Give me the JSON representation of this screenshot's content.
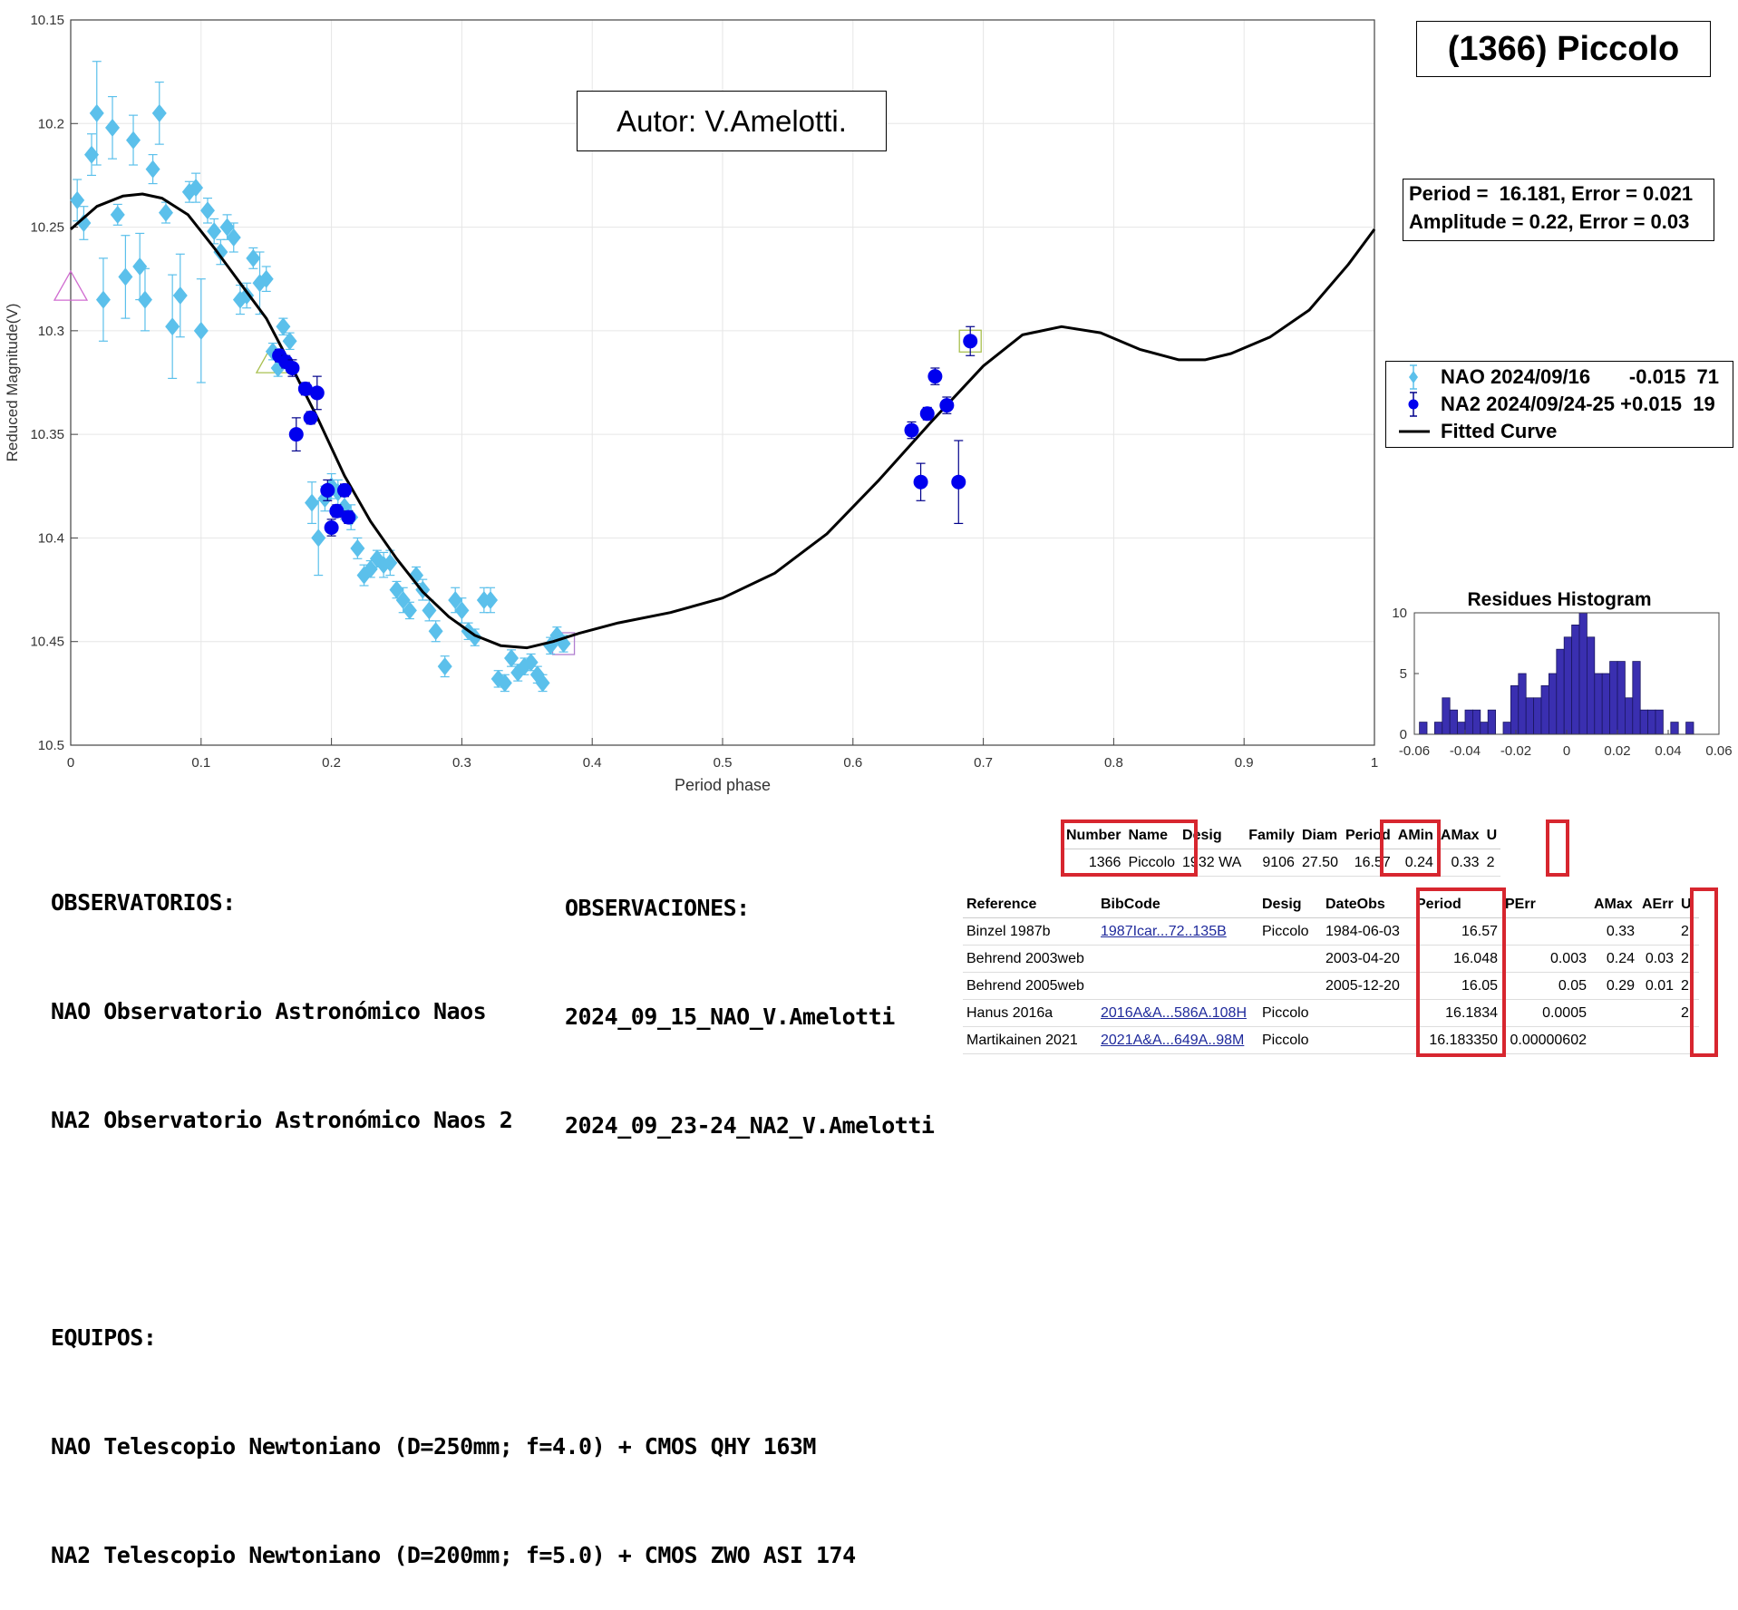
{
  "title": "(1366) Piccolo",
  "author": "Autor: V.Amelotti.",
  "fit_results": {
    "period_line": "Period =  16.181, Error = 0.021",
    "amplitude_line": "Amplitude = 0.22, Error = 0.03"
  },
  "legend": {
    "items": [
      {
        "label": "NAO 2024/09/16       -0.015  71",
        "color": "#5bc0eb",
        "marker": "diamond"
      },
      {
        "label": "NA2 2024/09/24-25 +0.015  19",
        "color": "#0000ee",
        "marker": "circle"
      },
      {
        "label": "Fitted Curve",
        "color": "#000000",
        "marker": "line"
      }
    ]
  },
  "chart_data": [
    {
      "type": "scatter",
      "xlabel": "Period phase",
      "ylabel": "Reduced Magnitude(V)",
      "xlim": [
        0,
        1
      ],
      "ylim": [
        10.15,
        10.5
      ],
      "y_inverted": true,
      "grid": true,
      "x_ticks": [
        "0",
        "0.1",
        "0.2",
        "0.3",
        "0.4",
        "0.5",
        "0.6",
        "0.7",
        "0.8",
        "0.9",
        "1"
      ],
      "y_ticks": [
        "10.15",
        "10.2",
        "10.25",
        "10.3",
        "10.35",
        "10.4",
        "10.45",
        "10.5"
      ],
      "series": [
        {
          "name": "NAO 2024/09/16",
          "color": "#5bc0eb",
          "marker": "diamond",
          "points": [
            [
              0.005,
              10.237,
              0.01
            ],
            [
              0.01,
              10.248,
              0.008
            ],
            [
              0.016,
              10.215,
              0.01
            ],
            [
              0.02,
              10.195,
              0.025
            ],
            [
              0.025,
              10.285,
              0.02
            ],
            [
              0.032,
              10.202,
              0.015
            ],
            [
              0.036,
              10.244,
              0.005
            ],
            [
              0.042,
              10.274,
              0.02
            ],
            [
              0.048,
              10.208,
              0.012
            ],
            [
              0.053,
              10.269,
              0.016
            ],
            [
              0.057,
              10.285,
              0.015
            ],
            [
              0.063,
              10.222,
              0.007
            ],
            [
              0.068,
              10.195,
              0.015
            ],
            [
              0.073,
              10.243,
              0.005
            ],
            [
              0.078,
              10.298,
              0.025
            ],
            [
              0.084,
              10.283,
              0.02
            ],
            [
              0.091,
              10.233,
              0.005
            ],
            [
              0.096,
              10.231,
              0.007
            ],
            [
              0.1,
              10.3,
              0.025
            ],
            [
              0.105,
              10.242,
              0.006
            ],
            [
              0.11,
              10.252,
              0.006
            ],
            [
              0.115,
              10.262,
              0.006
            ],
            [
              0.12,
              10.25,
              0.006
            ],
            [
              0.125,
              10.255,
              0.007
            ],
            [
              0.13,
              10.285,
              0.007
            ],
            [
              0.135,
              10.283,
              0.006
            ],
            [
              0.14,
              10.265,
              0.005
            ],
            [
              0.145,
              10.277,
              0.015
            ],
            [
              0.15,
              10.275,
              0.006
            ],
            [
              0.155,
              10.31,
              0.004
            ],
            [
              0.159,
              10.318,
              0.004
            ],
            [
              0.163,
              10.298,
              0.004
            ],
            [
              0.168,
              10.305,
              0.004
            ],
            [
              0.185,
              10.383,
              0.01
            ],
            [
              0.19,
              10.4,
              0.018
            ],
            [
              0.195,
              10.381,
              0.006
            ],
            [
              0.2,
              10.375,
              0.006
            ],
            [
              0.205,
              10.378,
              0.006
            ],
            [
              0.21,
              10.385,
              0.006
            ],
            [
              0.215,
              10.39,
              0.006
            ],
            [
              0.22,
              10.405,
              0.005
            ],
            [
              0.225,
              10.418,
              0.005
            ],
            [
              0.23,
              10.415,
              0.004
            ],
            [
              0.235,
              10.41,
              0.004
            ],
            [
              0.24,
              10.413,
              0.006
            ],
            [
              0.245,
              10.412,
              0.006
            ],
            [
              0.25,
              10.425,
              0.004
            ],
            [
              0.255,
              10.43,
              0.006
            ],
            [
              0.26,
              10.435,
              0.004
            ],
            [
              0.265,
              10.418,
              0.004
            ],
            [
              0.27,
              10.425,
              0.005
            ],
            [
              0.275,
              10.435,
              0.005
            ],
            [
              0.28,
              10.445,
              0.005
            ],
            [
              0.287,
              10.462,
              0.005
            ],
            [
              0.295,
              10.43,
              0.006
            ],
            [
              0.3,
              10.435,
              0.006
            ],
            [
              0.305,
              10.445,
              0.004
            ],
            [
              0.31,
              10.448,
              0.004
            ],
            [
              0.317,
              10.43,
              0.006
            ],
            [
              0.322,
              10.43,
              0.006
            ],
            [
              0.328,
              10.468,
              0.004
            ],
            [
              0.333,
              10.47,
              0.004
            ],
            [
              0.338,
              10.458,
              0.004
            ],
            [
              0.343,
              10.465,
              0.004
            ],
            [
              0.348,
              10.462,
              0.004
            ],
            [
              0.353,
              10.46,
              0.004
            ],
            [
              0.358,
              10.466,
              0.004
            ],
            [
              0.362,
              10.47,
              0.004
            ],
            [
              0.368,
              10.452,
              0.004
            ],
            [
              0.373,
              10.447,
              0.004
            ],
            [
              0.378,
              10.451,
              0.004
            ]
          ]
        },
        {
          "name": "NA2 2024/09/24-25",
          "color": "#0000ee",
          "marker": "circle",
          "points": [
            [
              0.16,
              10.312,
              0.003
            ],
            [
              0.165,
              10.315,
              0.003
            ],
            [
              0.17,
              10.318,
              0.004
            ],
            [
              0.173,
              10.35,
              0.008
            ],
            [
              0.18,
              10.328,
              0.003
            ],
            [
              0.184,
              10.342,
              0.003
            ],
            [
              0.189,
              10.33,
              0.008
            ],
            [
              0.197,
              10.377,
              0.005
            ],
            [
              0.2,
              10.395,
              0.004
            ],
            [
              0.204,
              10.387,
              0.003
            ],
            [
              0.21,
              10.377,
              0.003
            ],
            [
              0.213,
              10.39,
              0.003
            ],
            [
              0.645,
              10.348,
              0.004
            ],
            [
              0.652,
              10.373,
              0.009
            ],
            [
              0.657,
              10.34,
              0.003
            ],
            [
              0.663,
              10.322,
              0.004
            ],
            [
              0.672,
              10.336,
              0.004
            ],
            [
              0.681,
              10.373,
              0.02
            ],
            [
              0.69,
              10.305,
              0.007
            ]
          ]
        },
        {
          "name": "Fitted Curve",
          "type": "line",
          "color": "#000000",
          "points": [
            [
              0,
              10.251
            ],
            [
              0.02,
              10.24
            ],
            [
              0.04,
              10.235
            ],
            [
              0.055,
              10.234
            ],
            [
              0.07,
              10.236
            ],
            [
              0.09,
              10.244
            ],
            [
              0.11,
              10.26
            ],
            [
              0.13,
              10.277
            ],
            [
              0.15,
              10.294
            ],
            [
              0.17,
              10.318
            ],
            [
              0.19,
              10.343
            ],
            [
              0.21,
              10.37
            ],
            [
              0.23,
              10.392
            ],
            [
              0.25,
              10.41
            ],
            [
              0.27,
              10.426
            ],
            [
              0.29,
              10.438
            ],
            [
              0.31,
              10.447
            ],
            [
              0.33,
              10.452
            ],
            [
              0.35,
              10.453
            ],
            [
              0.37,
              10.45
            ],
            [
              0.39,
              10.446
            ],
            [
              0.42,
              10.441
            ],
            [
              0.46,
              10.436
            ],
            [
              0.5,
              10.429
            ],
            [
              0.54,
              10.417
            ],
            [
              0.58,
              10.398
            ],
            [
              0.62,
              10.372
            ],
            [
              0.66,
              10.344
            ],
            [
              0.7,
              10.317
            ],
            [
              0.73,
              10.302
            ],
            [
              0.76,
              10.298
            ],
            [
              0.79,
              10.301
            ],
            [
              0.82,
              10.309
            ],
            [
              0.85,
              10.314
            ],
            [
              0.87,
              10.314
            ],
            [
              0.89,
              10.311
            ],
            [
              0.92,
              10.303
            ],
            [
              0.95,
              10.29
            ],
            [
              0.98,
              10.268
            ],
            [
              1,
              10.251
            ]
          ]
        }
      ],
      "markers": [
        {
          "x": 0.0,
          "y": 10.28,
          "shape": "triangle",
          "color": "#d06cd0"
        },
        {
          "x": 0.155,
          "y": 10.315,
          "shape": "triangle",
          "color": "#a9c050"
        },
        {
          "x": 0.378,
          "y": 10.451,
          "shape": "square",
          "color": "#b07ed0"
        },
        {
          "x": 0.69,
          "y": 10.305,
          "shape": "square",
          "color": "#a9c050"
        }
      ]
    },
    {
      "type": "bar",
      "title": "Residues Histogram",
      "xlim": [
        -0.06,
        0.06
      ],
      "ylim": [
        0,
        10
      ],
      "x_ticks": [
        "-0.06",
        "-0.04",
        "-0.02",
        "0",
        "0.02",
        "0.04",
        "0.06"
      ],
      "y_ticks": [
        "0",
        "5",
        "10"
      ],
      "color": "#3a2fb0",
      "bin_width": 0.003,
      "bin_starts": [
        -0.058,
        -0.055,
        -0.052,
        -0.049,
        -0.046,
        -0.043,
        -0.04,
        -0.037,
        -0.034,
        -0.031,
        -0.028,
        -0.025,
        -0.022,
        -0.019,
        -0.016,
        -0.013,
        -0.01,
        -0.007,
        -0.004,
        -0.001,
        0.002,
        0.005,
        0.008,
        0.011,
        0.014,
        0.017,
        0.02,
        0.023,
        0.026,
        0.029,
        0.032,
        0.035,
        0.038,
        0.041,
        0.044,
        0.047
      ],
      "values": [
        1,
        0,
        1,
        3,
        2,
        1,
        2,
        2,
        1,
        2,
        0,
        1,
        4,
        5,
        3,
        3,
        4,
        5,
        7,
        8,
        9,
        10,
        8,
        5,
        5,
        6,
        6,
        3,
        6,
        2,
        2,
        2,
        0,
        1,
        0,
        1
      ]
    }
  ],
  "notes_left": {
    "lines": [
      "OBSERVATORIOS:",
      "NAO Observatorio Astronómico Naos",
      "NA2 Observatorio Astronómico Naos 2",
      "",
      "EQUIPOS:",
      "NAO Telescopio Newtoniano (D=250mm; f=4.0) + CMOS QHY 163M",
      "NA2 Telescopio Newtoniano (D=200mm; f=5.0) + CMOS ZWO ASI 174"
    ]
  },
  "notes_middle": {
    "lines": [
      "OBSERVACIONES:",
      "2024_09_15_NAO_V.Amelotti",
      "2024_09_23-24_NA2_V.Amelotti"
    ]
  },
  "summary_table": {
    "headers": [
      "Number",
      "Name",
      "Desig",
      "Family",
      "Diam",
      "Period",
      "AMin",
      "AMax",
      "U"
    ],
    "row": [
      "1366",
      "Piccolo",
      "1932 WA",
      "9106",
      "27.50",
      "16.57",
      "0.24",
      "0.33",
      "2"
    ]
  },
  "reference_table": {
    "headers": [
      "Reference",
      "BibCode",
      "Desig",
      "DateObs",
      "Period",
      "PErr",
      "AMax",
      "AErr",
      "U"
    ],
    "rows": [
      [
        "Binzel 1987b",
        "1987Icar...72..135B",
        "Piccolo",
        "1984-06-03",
        "16.57",
        "",
        "0.33",
        "",
        "2"
      ],
      [
        "Behrend 2003web",
        "",
        "",
        "2003-04-20",
        "16.048",
        "0.003",
        "0.24",
        "0.03",
        "2"
      ],
      [
        "Behrend 2005web",
        "",
        "",
        "2005-12-20",
        "16.05",
        "0.05",
        "0.29",
        "0.01",
        "2"
      ],
      [
        "Hanus 2016a",
        "2016A&A...586A.108H",
        "Piccolo",
        "",
        "16.1834",
        "0.0005",
        "",
        "",
        "2"
      ],
      [
        "Martikainen 2021",
        "2021A&A...649A..98M",
        "Piccolo",
        "",
        "16.183350",
        "0.00000602",
        "",
        "",
        ""
      ]
    ]
  }
}
